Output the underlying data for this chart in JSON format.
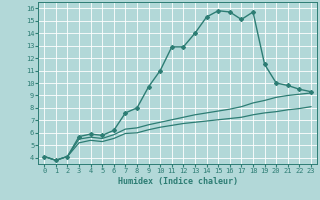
{
  "xlabel": "Humidex (Indice chaleur)",
  "ylabel": "",
  "bg_color": "#b2d8d8",
  "grid_color": "#ffffff",
  "line_color": "#2d7d74",
  "xlim": [
    -0.5,
    23.5
  ],
  "ylim": [
    3.5,
    16.5
  ],
  "xticks": [
    0,
    1,
    2,
    3,
    4,
    5,
    6,
    7,
    8,
    9,
    10,
    11,
    12,
    13,
    14,
    15,
    16,
    17,
    18,
    19,
    20,
    21,
    22,
    23
  ],
  "yticks": [
    4,
    5,
    6,
    7,
    8,
    9,
    10,
    11,
    12,
    13,
    14,
    15,
    16
  ],
  "series": [
    {
      "x": [
        0,
        1,
        2,
        3,
        4,
        5,
        6,
        7,
        8,
        9,
        10,
        11,
        12,
        13,
        14,
        15,
        16,
        17,
        18,
        19,
        20,
        21,
        22,
        23
      ],
      "y": [
        4.1,
        3.8,
        4.1,
        5.7,
        5.9,
        5.8,
        6.2,
        7.6,
        8.0,
        9.7,
        11.0,
        12.9,
        12.9,
        14.0,
        15.3,
        15.8,
        15.7,
        15.1,
        15.7,
        11.5,
        10.0,
        9.8,
        9.5,
        9.3
      ],
      "marker": "D",
      "markersize": 2.0,
      "linewidth": 1.0
    },
    {
      "x": [
        0,
        1,
        2,
        3,
        4,
        5,
        6,
        7,
        8,
        9,
        10,
        11,
        12,
        13,
        14,
        15,
        16,
        17,
        18,
        19,
        20,
        21,
        22,
        23
      ],
      "y": [
        4.1,
        3.8,
        4.1,
        5.5,
        5.65,
        5.55,
        5.85,
        6.3,
        6.4,
        6.65,
        6.85,
        7.05,
        7.25,
        7.45,
        7.6,
        7.75,
        7.9,
        8.1,
        8.4,
        8.6,
        8.85,
        9.0,
        9.1,
        9.2
      ],
      "marker": null,
      "markersize": 0,
      "linewidth": 0.9
    },
    {
      "x": [
        0,
        1,
        2,
        3,
        4,
        5,
        6,
        7,
        8,
        9,
        10,
        11,
        12,
        13,
        14,
        15,
        16,
        17,
        18,
        19,
        20,
        21,
        22,
        23
      ],
      "y": [
        4.1,
        3.8,
        4.1,
        5.2,
        5.4,
        5.3,
        5.55,
        5.95,
        6.0,
        6.25,
        6.45,
        6.6,
        6.75,
        6.85,
        6.95,
        7.05,
        7.15,
        7.25,
        7.45,
        7.6,
        7.7,
        7.85,
        7.95,
        8.1
      ],
      "marker": null,
      "markersize": 0,
      "linewidth": 0.9
    }
  ]
}
